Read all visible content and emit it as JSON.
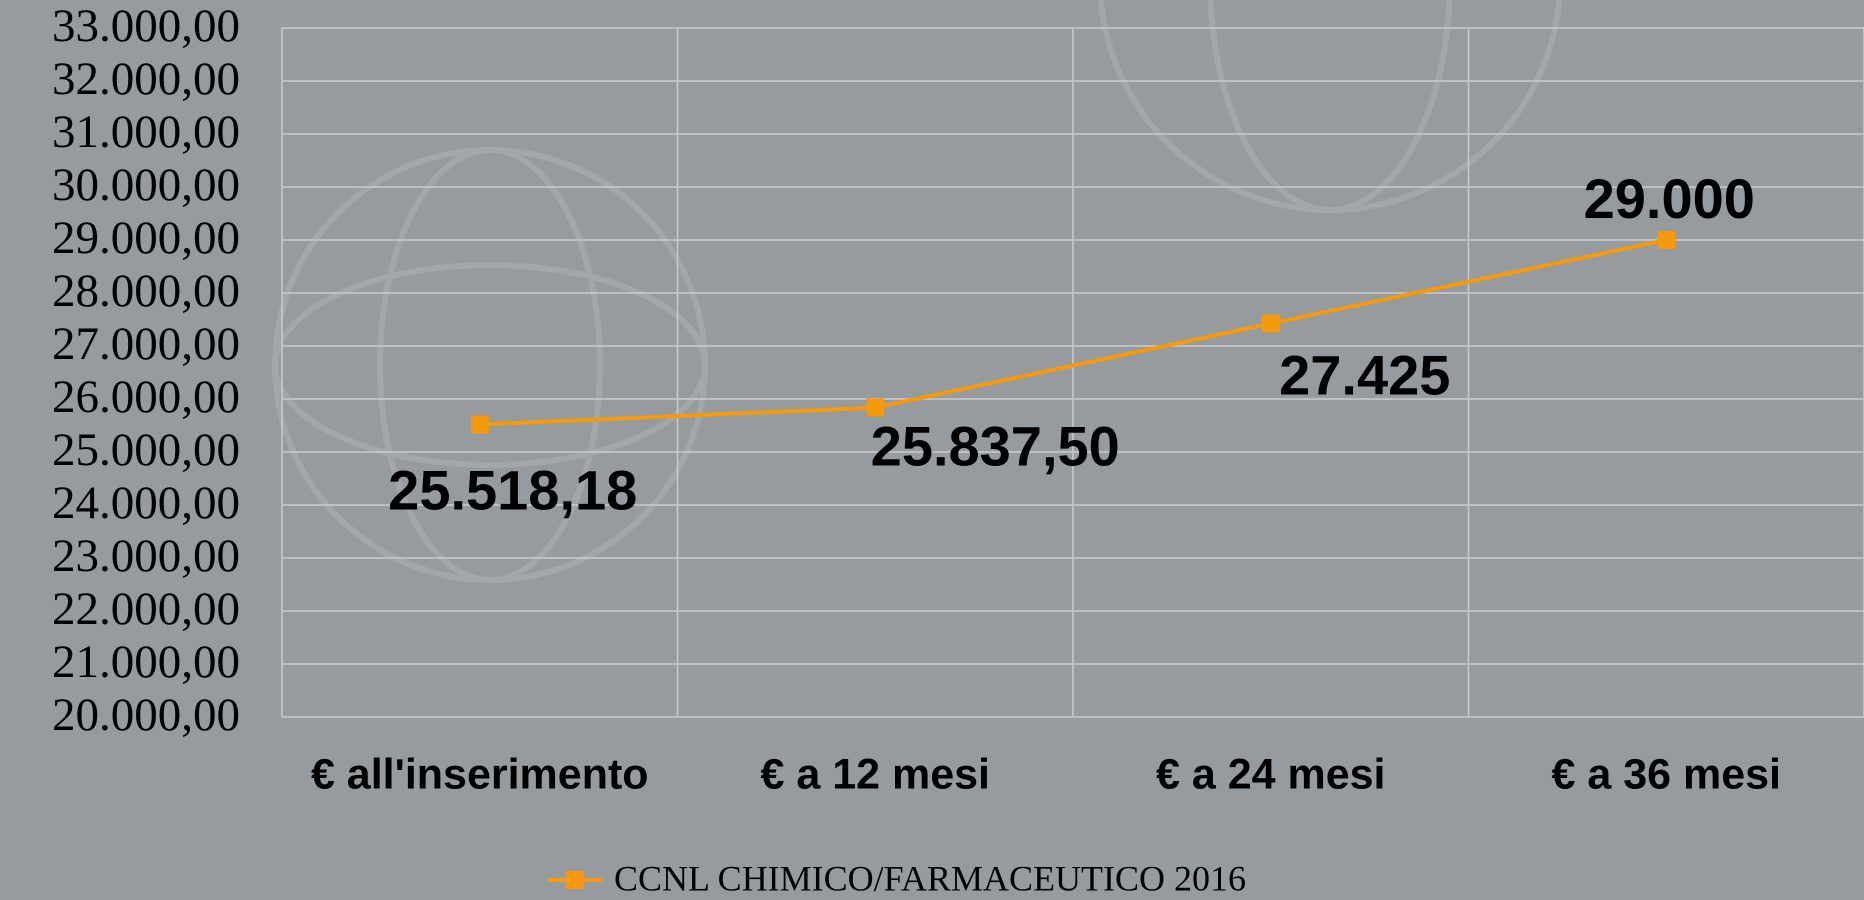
{
  "chart_data": {
    "type": "line",
    "categories": [
      "€ all'inserimento",
      "€ a 12 mesi",
      "€ a 24 mesi",
      "€ a 36 mesi"
    ],
    "series": [
      {
        "name": "CCNL CHIMICO/FARMACEUTICO 2016",
        "color": "#f59a0b",
        "values": [
          25518.18,
          25837.5,
          27425,
          29000
        ],
        "value_labels": [
          "25.518,18",
          "25.837,50",
          "27.425",
          "29.000"
        ]
      }
    ],
    "ylim": [
      20000,
      33000
    ],
    "yticks": [
      {
        "value": 20000,
        "label": "20.000,00"
      },
      {
        "value": 21000,
        "label": "21.000,00"
      },
      {
        "value": 22000,
        "label": "22.000,00"
      },
      {
        "value": 23000,
        "label": "23.000,00"
      },
      {
        "value": 24000,
        "label": "24.000,00"
      },
      {
        "value": 25000,
        "label": "25.000,00"
      },
      {
        "value": 26000,
        "label": "26.000,00"
      },
      {
        "value": 27000,
        "label": "27.000,00"
      },
      {
        "value": 28000,
        "label": "28.000,00"
      },
      {
        "value": 29000,
        "label": "29.000,00"
      },
      {
        "value": 30000,
        "label": "30.000,00"
      },
      {
        "value": 31000,
        "label": "31.000,00"
      },
      {
        "value": 32000,
        "label": "32.000,00"
      },
      {
        "value": 33000,
        "label": "33.000,00"
      }
    ],
    "grid": true,
    "legend": "bottom"
  }
}
